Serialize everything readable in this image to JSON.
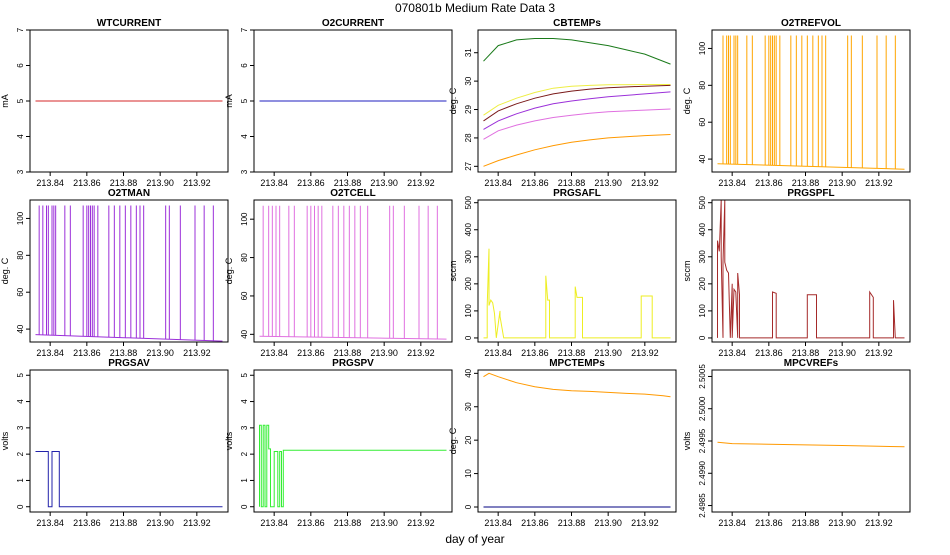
{
  "page": {
    "title": "070801b   Medium Rate Data 3",
    "xlabel": "day of year"
  },
  "chart_data": [
    {
      "type": "line",
      "title": "WTCURRENT",
      "ylabel": "mA",
      "xlim": [
        213.829,
        213.937
      ],
      "ylim": [
        3,
        7
      ],
      "xticks": [
        "213.84",
        "213.86",
        "213.88",
        "213.90",
        "213.92"
      ],
      "yticks": [
        "3",
        "4",
        "5",
        "6",
        "7"
      ],
      "series": [
        {
          "name": "WTCURRENT",
          "color": "#d62728",
          "x": [
            213.832,
            213.934
          ],
          "y": [
            5,
            5
          ]
        }
      ]
    },
    {
      "type": "line",
      "title": "O2CURRENT",
      "ylabel": "mA",
      "xlim": [
        213.829,
        213.937
      ],
      "ylim": [
        3,
        7
      ],
      "xticks": [
        "213.84",
        "213.86",
        "213.88",
        "213.90",
        "213.92"
      ],
      "yticks": [
        "3",
        "4",
        "5",
        "6",
        "7"
      ],
      "series": [
        {
          "name": "O2CURRENT",
          "color": "#1f1fbf",
          "x": [
            213.832,
            213.934
          ],
          "y": [
            5,
            5
          ]
        }
      ]
    },
    {
      "type": "line",
      "title": "CBTEMPs",
      "ylabel": "deg. C",
      "xlim": [
        213.829,
        213.937
      ],
      "ylim": [
        26.8,
        31.8
      ],
      "xticks": [
        "213.84",
        "213.86",
        "213.88",
        "213.90",
        "213.92"
      ],
      "yticks": [
        "27",
        "28",
        "29",
        "30",
        "31"
      ],
      "series": [
        {
          "name": "green",
          "color": "#1a7a1a",
          "x": [
            213.832,
            213.84,
            213.85,
            213.86,
            213.87,
            213.88,
            213.89,
            213.9,
            213.91,
            213.92,
            213.934
          ],
          "y": [
            30.7,
            31.25,
            31.45,
            31.5,
            31.5,
            31.45,
            31.35,
            31.25,
            31.1,
            30.95,
            30.6
          ]
        },
        {
          "name": "yellow",
          "color": "#eeee44",
          "x": [
            213.832,
            213.84,
            213.85,
            213.86,
            213.87,
            213.88,
            213.89,
            213.9,
            213.92,
            213.934
          ],
          "y": [
            28.8,
            29.15,
            29.4,
            29.6,
            29.75,
            29.82,
            29.85,
            29.87,
            29.88,
            29.88
          ]
        },
        {
          "name": "brown",
          "color": "#7a1a1a",
          "x": [
            213.832,
            213.84,
            213.85,
            213.86,
            213.87,
            213.88,
            213.89,
            213.9,
            213.92,
            213.934
          ],
          "y": [
            28.6,
            28.95,
            29.2,
            29.4,
            29.55,
            29.65,
            29.72,
            29.77,
            29.82,
            29.85
          ]
        },
        {
          "name": "purple",
          "color": "#9b30d9",
          "x": [
            213.832,
            213.84,
            213.85,
            213.86,
            213.87,
            213.88,
            213.89,
            213.9,
            213.92,
            213.934
          ],
          "y": [
            28.3,
            28.6,
            28.85,
            29.05,
            29.2,
            29.3,
            29.38,
            29.45,
            29.55,
            29.62
          ]
        },
        {
          "name": "pink",
          "color": "#e070e0",
          "x": [
            213.832,
            213.84,
            213.85,
            213.86,
            213.87,
            213.88,
            213.89,
            213.9,
            213.92,
            213.934
          ],
          "y": [
            27.95,
            28.25,
            28.45,
            28.6,
            28.72,
            28.8,
            28.87,
            28.92,
            28.98,
            29.02
          ]
        },
        {
          "name": "orange",
          "color": "#ff9900",
          "x": [
            213.832,
            213.84,
            213.85,
            213.86,
            213.87,
            213.88,
            213.89,
            213.9,
            213.92,
            213.934
          ],
          "y": [
            27.0,
            27.2,
            27.4,
            27.58,
            27.73,
            27.85,
            27.93,
            28.0,
            28.08,
            28.12
          ]
        }
      ]
    },
    {
      "type": "line",
      "title": "O2TREFVOL",
      "ylabel": "deg. C",
      "xlim": [
        213.829,
        213.937
      ],
      "ylim": [
        33,
        110
      ],
      "xticks": [
        "213.84",
        "213.86",
        "213.88",
        "213.90",
        "213.92"
      ],
      "yticks": [
        "40",
        "60",
        "80",
        "100"
      ],
      "series": [
        {
          "name": "O2TREFVOL",
          "color": "#ffa500",
          "x": [
            213.832,
            213.934
          ],
          "y": [
            37.5,
            34.5
          ],
          "spike_x": [
            213.835,
            213.837,
            213.838,
            213.839,
            213.841,
            213.842,
            213.843,
            213.848,
            213.851,
            213.858,
            213.86,
            213.861,
            213.862,
            213.863,
            213.864,
            213.866,
            213.872,
            213.875,
            213.878,
            213.881,
            213.884,
            213.887,
            213.889,
            213.891,
            213.903,
            213.905,
            213.911,
            213.919,
            213.924,
            213.929
          ],
          "spike_y": 107
        }
      ]
    },
    {
      "type": "line",
      "title": "O2TMAN",
      "ylabel": "deg. C",
      "xlim": [
        213.829,
        213.937
      ],
      "ylim": [
        33,
        110
      ],
      "xticks": [
        "213.84",
        "213.86",
        "213.88",
        "213.90",
        "213.92"
      ],
      "yticks": [
        "40",
        "60",
        "80",
        "100"
      ],
      "series": [
        {
          "name": "O2TMAN",
          "color": "#9b30d9",
          "x": [
            213.832,
            213.934
          ],
          "y": [
            37.0,
            33.5
          ],
          "spike_x": [
            213.834,
            213.836,
            213.838,
            213.839,
            213.841,
            213.842,
            213.843,
            213.848,
            213.851,
            213.858,
            213.86,
            213.861,
            213.862,
            213.863,
            213.864,
            213.866,
            213.872,
            213.875,
            213.878,
            213.881,
            213.884,
            213.887,
            213.889,
            213.891,
            213.903,
            213.905,
            213.911,
            213.919,
            213.924,
            213.929
          ],
          "spike_y": 107
        }
      ]
    },
    {
      "type": "line",
      "title": "O2TCELL",
      "ylabel": "deg. C",
      "xlim": [
        213.829,
        213.937
      ],
      "ylim": [
        36,
        110
      ],
      "xticks": [
        "213.84",
        "213.86",
        "213.88",
        "213.90",
        "213.92"
      ],
      "yticks": [
        "40",
        "60",
        "80",
        "100"
      ],
      "series": [
        {
          "name": "O2TCELL",
          "color": "#e070e0",
          "x": [
            213.832,
            213.934
          ],
          "y": [
            39.0,
            37.5
          ],
          "spike_x": [
            213.834,
            213.837,
            213.839,
            213.841,
            213.843,
            213.848,
            213.851,
            213.858,
            213.86,
            213.862,
            213.864,
            213.866,
            213.872,
            213.875,
            213.878,
            213.881,
            213.884,
            213.887,
            213.891,
            213.903,
            213.905,
            213.911,
            213.919,
            213.924,
            213.929
          ],
          "spike_y": 107
        }
      ]
    },
    {
      "type": "line",
      "title": "PRGSAFL",
      "ylabel": "sccm",
      "xlim": [
        213.829,
        213.937
      ],
      "ylim": [
        -15,
        510
      ],
      "xticks": [
        "213.84",
        "213.86",
        "213.88",
        "213.90",
        "213.92"
      ],
      "yticks": [
        "0",
        "100",
        "200",
        "300",
        "400",
        "500"
      ],
      "series": [
        {
          "name": "PRGSAFL",
          "color": "#eeee22",
          "x": [
            213.832,
            213.834,
            213.834,
            213.835,
            213.835,
            213.836,
            213.837,
            213.838,
            213.839,
            213.839,
            213.841,
            213.841,
            213.843,
            213.843,
            213.866,
            213.866,
            213.867,
            213.868,
            213.868,
            213.882,
            213.882,
            213.883,
            213.886,
            213.886,
            213.918,
            213.918,
            213.924,
            213.924,
            213.934
          ],
          "y": [
            0,
            0,
            120,
            330,
            120,
            140,
            130,
            90,
            0,
            0,
            100,
            80,
            0,
            0,
            0,
            230,
            140,
            140,
            0,
            0,
            190,
            150,
            150,
            0,
            0,
            155,
            155,
            0,
            0
          ]
        }
      ]
    },
    {
      "type": "line",
      "title": "PRGSPFL",
      "ylabel": "sccm",
      "xlim": [
        213.829,
        213.937
      ],
      "ylim": [
        -15,
        510
      ],
      "xticks": [
        "213.84",
        "213.86",
        "213.88",
        "213.90",
        "213.92"
      ],
      "yticks": [
        "0",
        "100",
        "200",
        "300",
        "400",
        "500"
      ],
      "series": [
        {
          "name": "PRGSPFL",
          "color": "#a52a2a",
          "x": [
            213.832,
            213.832,
            213.833,
            213.834,
            213.834,
            213.835,
            213.835,
            213.836,
            213.836,
            213.837,
            213.838,
            213.839,
            213.84,
            213.84,
            213.841,
            213.842,
            213.843,
            213.843,
            213.844,
            213.844,
            213.862,
            213.862,
            213.864,
            213.864,
            213.871,
            213.871,
            213.881,
            213.881,
            213.886,
            213.886,
            213.895,
            213.895,
            213.915,
            213.915,
            213.917,
            213.917,
            213.928,
            213.928,
            213.929,
            213.929,
            213.934
          ],
          "y": [
            0,
            360,
            320,
            510,
            300,
            0,
            280,
            510,
            280,
            250,
            240,
            0,
            200,
            0,
            180,
            170,
            0,
            240,
            160,
            0,
            0,
            170,
            165,
            0,
            0,
            0,
            0,
            160,
            160,
            0,
            0,
            0,
            0,
            170,
            150,
            0,
            0,
            140,
            0,
            0,
            0
          ]
        }
      ]
    },
    {
      "type": "line",
      "title": "PRGSAV",
      "ylabel": "volts",
      "xlim": [
        213.829,
        213.937
      ],
      "ylim": [
        -0.2,
        5.2
      ],
      "xticks": [
        "213.84",
        "213.86",
        "213.88",
        "213.90",
        "213.92"
      ],
      "yticks": [
        "0",
        "1",
        "2",
        "3",
        "4",
        "5"
      ],
      "series": [
        {
          "name": "PRGSAV",
          "color": "#2222aa",
          "x": [
            213.832,
            213.839,
            213.839,
            213.841,
            213.841,
            213.845,
            213.845,
            213.934
          ],
          "y": [
            2.1,
            2.1,
            0,
            0,
            2.1,
            2.1,
            0,
            0
          ]
        }
      ]
    },
    {
      "type": "line",
      "title": "PRGSPV",
      "ylabel": "volts",
      "xlim": [
        213.829,
        213.937
      ],
      "ylim": [
        -0.2,
        5.2
      ],
      "xticks": [
        "213.84",
        "213.86",
        "213.88",
        "213.90",
        "213.92"
      ],
      "yticks": [
        "0",
        "1",
        "2",
        "3",
        "4",
        "5"
      ],
      "series": [
        {
          "name": "PRGSPV",
          "color": "#33ee33",
          "x": [
            213.832,
            213.832,
            213.833,
            213.833,
            213.834,
            213.834,
            213.835,
            213.835,
            213.836,
            213.836,
            213.837,
            213.837,
            213.838,
            213.838,
            213.84,
            213.84,
            213.842,
            213.842,
            213.843,
            213.843,
            213.844,
            213.844,
            213.845,
            213.845,
            213.934
          ],
          "y": [
            0,
            3.1,
            3.1,
            0,
            0,
            3.1,
            3.1,
            0,
            0,
            3.1,
            3.1,
            2.2,
            2.2,
            0,
            0,
            2.1,
            2.1,
            0,
            0,
            2.1,
            2.1,
            0,
            0,
            2.15,
            2.15
          ]
        }
      ]
    },
    {
      "type": "line",
      "title": "MPCTEMPs",
      "ylabel": "deg. C",
      "xlim": [
        213.829,
        213.937
      ],
      "ylim": [
        -1.5,
        41
      ],
      "xticks": [
        "213.84",
        "213.86",
        "213.88",
        "213.90",
        "213.92"
      ],
      "yticks": [
        "0",
        "10",
        "20",
        "30",
        "40"
      ],
      "series": [
        {
          "name": "orange",
          "color": "#ff9900",
          "x": [
            213.832,
            213.835,
            213.84,
            213.85,
            213.86,
            213.87,
            213.88,
            213.89,
            213.9,
            213.91,
            213.92,
            213.93,
            213.934
          ],
          "y": [
            39.0,
            40.0,
            39.0,
            37.2,
            36.0,
            35.2,
            34.8,
            34.6,
            34.3,
            34.0,
            33.8,
            33.3,
            33.0
          ]
        },
        {
          "name": "navy",
          "color": "#000080",
          "x": [
            213.832,
            213.934
          ],
          "y": [
            0,
            0
          ]
        }
      ]
    },
    {
      "type": "line",
      "title": "MPCVREFs",
      "ylabel": "volts",
      "xlim": [
        213.829,
        213.937
      ],
      "ylim": [
        2.4984,
        2.5006
      ],
      "xticks": [
        "213.84",
        "213.86",
        "213.88",
        "213.90",
        "213.92"
      ],
      "yticks": [
        "2.4985",
        "2.4990",
        "2.4995",
        "2.5000",
        "2.5005"
      ],
      "series": [
        {
          "name": "orange",
          "color": "#ff9900",
          "x": [
            213.832,
            213.84,
            213.86,
            213.88,
            213.9,
            213.92,
            213.934
          ],
          "y": [
            2.49948,
            2.49946,
            2.49945,
            2.49944,
            2.49943,
            2.49942,
            2.49941
          ]
        }
      ]
    }
  ]
}
